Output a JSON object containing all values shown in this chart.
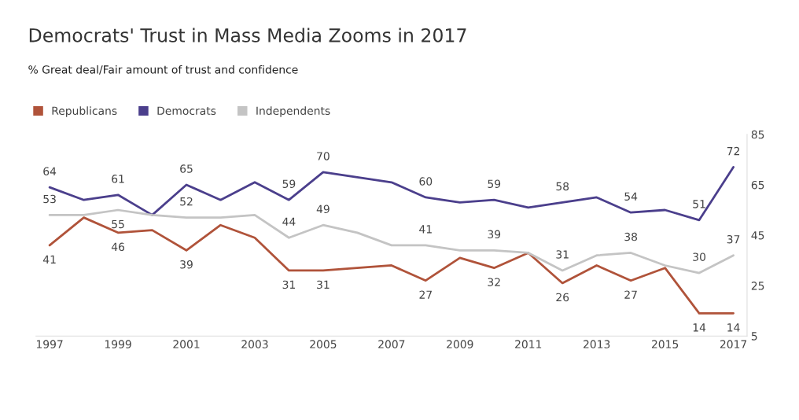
{
  "chart_data": {
    "type": "line",
    "title": "Democrats' Trust in Mass Media Zooms in 2017",
    "subtitle": "% Great deal/Fair amount of trust and confidence",
    "x": [
      1997,
      1998,
      1999,
      2000,
      2001,
      2002,
      2003,
      2004,
      2005,
      2006,
      2007,
      2008,
      2009,
      2010,
      2011,
      2012,
      2013,
      2014,
      2015,
      2016,
      2017
    ],
    "xlim": [
      1996.6,
      2017.4
    ],
    "xticks": [
      1997,
      1999,
      2001,
      2003,
      2005,
      2007,
      2009,
      2011,
      2013,
      2015,
      2017
    ],
    "ylim": [
      5,
      85
    ],
    "yticks": [
      5,
      25,
      45,
      65,
      85
    ],
    "grid": false,
    "legend": "top left",
    "marker": "none",
    "line_style": "solid",
    "series": [
      {
        "name": "Republicans",
        "color": "#b0533a",
        "values": [
          41,
          52,
          46,
          47,
          39,
          49,
          44,
          31,
          31,
          32,
          33,
          27,
          36,
          32,
          38,
          26,
          33,
          27,
          32,
          14,
          14
        ],
        "value_labels": [
          "41",
          null,
          "46",
          null,
          "39",
          null,
          null,
          "31",
          "31",
          null,
          null,
          "27",
          null,
          "32",
          null,
          "26",
          null,
          "27",
          null,
          "14",
          "14"
        ]
      },
      {
        "name": "Democrats",
        "color": "#4b3f8c",
        "values": [
          64,
          59,
          61,
          53,
          65,
          59,
          66,
          59,
          70,
          68,
          66,
          60,
          58,
          59,
          56,
          58,
          60,
          54,
          55,
          51,
          72
        ],
        "value_labels": [
          "64",
          null,
          "61",
          null,
          "65",
          null,
          null,
          "59",
          "70",
          null,
          null,
          "60",
          null,
          "59",
          null,
          "58",
          null,
          "54",
          null,
          "51",
          "72"
        ]
      },
      {
        "name": "Independents",
        "color": "#c4c4c4",
        "values": [
          53,
          53,
          55,
          53,
          52,
          52,
          53,
          44,
          49,
          46,
          41,
          41,
          39,
          39,
          38,
          31,
          37,
          38,
          33,
          30,
          37
        ],
        "value_labels": [
          "53",
          null,
          "55",
          null,
          "52",
          null,
          null,
          "44",
          "49",
          null,
          null,
          "41",
          null,
          "39",
          null,
          "31",
          null,
          "38",
          null,
          "30",
          "37"
        ]
      }
    ]
  }
}
